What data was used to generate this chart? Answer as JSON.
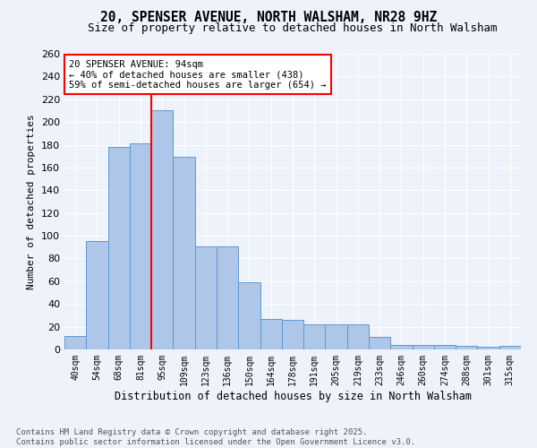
{
  "title_line1": "20, SPENSER AVENUE, NORTH WALSHAM, NR28 9HZ",
  "title_line2": "Size of property relative to detached houses in North Walsham",
  "xlabel": "Distribution of detached houses by size in North Walsham",
  "ylabel": "Number of detached properties",
  "categories": [
    "40sqm",
    "54sqm",
    "68sqm",
    "81sqm",
    "95sqm",
    "109sqm",
    "123sqm",
    "136sqm",
    "150sqm",
    "164sqm",
    "178sqm",
    "191sqm",
    "205sqm",
    "219sqm",
    "233sqm",
    "246sqm",
    "260sqm",
    "274sqm",
    "288sqm",
    "301sqm",
    "315sqm"
  ],
  "values": [
    12,
    95,
    178,
    181,
    210,
    169,
    91,
    91,
    59,
    27,
    26,
    22,
    22,
    22,
    11,
    4,
    4,
    4,
    3,
    2,
    3
  ],
  "bar_color": "#aec6e8",
  "bar_edge_color": "#5b9bd5",
  "vline_color": "red",
  "annotation_text": "20 SPENSER AVENUE: 94sqm\n← 40% of detached houses are smaller (438)\n59% of semi-detached houses are larger (654) →",
  "annotation_box_color": "white",
  "annotation_box_edge": "red",
  "ylim": [
    0,
    260
  ],
  "yticks": [
    0,
    20,
    40,
    60,
    80,
    100,
    120,
    140,
    160,
    180,
    200,
    220,
    240,
    260
  ],
  "bg_color": "#eef2fb",
  "grid_color": "white",
  "footnote": "Contains HM Land Registry data © Crown copyright and database right 2025.\nContains public sector information licensed under the Open Government Licence v3.0.",
  "title_fontsize": 10.5,
  "subtitle_fontsize": 9,
  "annotation_fontsize": 7.5,
  "footnote_fontsize": 6.5,
  "ylabel_fontsize": 8,
  "xlabel_fontsize": 8.5
}
